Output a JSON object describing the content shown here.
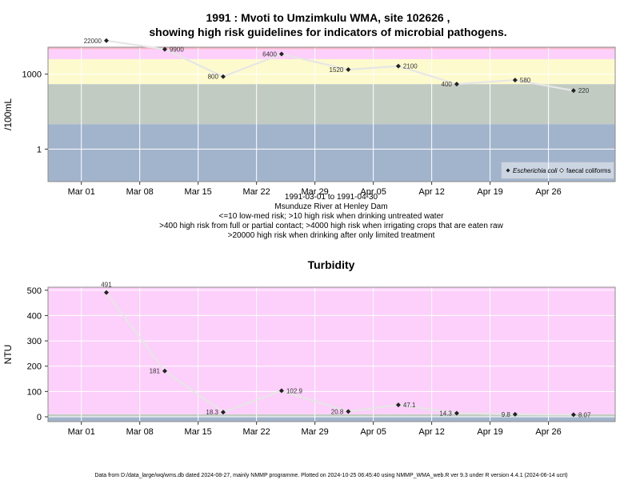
{
  "title_line1": "1991 : Mvoti to Umzimkulu WMA, site 102626 ,",
  "title_line2": "showing high risk guidelines for indicators of microbial pathogens.",
  "footer": "Data from D:/data_large/wq/wms.db dated 2024-08-27, mainly NMMP programme. Plotted on 2024-10-25 06:45:40 using NMMP_WMA_web.R ver 9.3 under R version 4.4.1 (2024-06-14 ucrt)",
  "colors": {
    "band_blue": "#a2b4cc",
    "band_green": "#c2cbc2",
    "band_yellow": "#fdfacd",
    "band_pink": "#fcd0fa",
    "band_red": "#f8b8c8",
    "line": "#e6e6e6",
    "marker": "#222222"
  },
  "chart_data": [
    {
      "type": "line",
      "ylabel": "/100mL",
      "yscale": "log",
      "ylim": [
        0.05,
        12000
      ],
      "yticks": [
        1,
        1000
      ],
      "ytick_labels": [
        "1",
        "1000"
      ],
      "xlim": [
        "1991-02-25",
        "1991-05-04"
      ],
      "xticks": [
        "1991-03-01",
        "1991-03-08",
        "1991-03-15",
        "1991-03-22",
        "1991-03-29",
        "1991-04-05",
        "1991-04-12",
        "1991-04-19",
        "1991-04-26"
      ],
      "xtick_labels": [
        "Mar 01",
        "Mar 08",
        "Mar 15",
        "Mar 22",
        "Mar 29",
        "Apr 05",
        "Apr 12",
        "Apr 19",
        "Apr 26"
      ],
      "guideline_bands": [
        {
          "from": 0.05,
          "to": 10,
          "color": "band_blue"
        },
        {
          "from": 10,
          "to": 400,
          "color": "band_green"
        },
        {
          "from": 400,
          "to": 4000,
          "color": "band_yellow"
        },
        {
          "from": 4000,
          "to": 10000,
          "color": "band_pink"
        },
        {
          "from": 10000,
          "to": 12000,
          "color": "band_red"
        }
      ],
      "x": [
        "1991-03-04",
        "1991-03-11",
        "1991-03-18",
        "1991-03-25",
        "1991-04-02",
        "1991-04-08",
        "1991-04-15",
        "1991-04-22",
        "1991-04-29"
      ],
      "series": [
        {
          "name": "Escherichia coli",
          "values": [
            22000,
            9900,
            800,
            6400,
            1520,
            2100,
            400,
            580,
            220
          ],
          "labels": [
            "22000",
            "9900",
            "800",
            "6400",
            "1520",
            "2100",
            "400",
            "580",
            "220"
          ],
          "label_side": [
            "left",
            "right",
            "left",
            "left",
            "left",
            "right",
            "left",
            "right",
            "right"
          ]
        }
      ],
      "legend": {
        "placement": "bottom-right",
        "entries": [
          "Escherichia coli",
          "faecal coliforms"
        ]
      },
      "xlabel_lines": [
        "1991-03-01 to 1991-04-30",
        "Msunduze River at Henley Dam",
        "<=10 low-med risk; >10 high risk when drinking untreated water",
        ">400 high risk from full or partial contact; >4000 high risk when irrigating crops that are eaten raw",
        ">20000 high risk when drinking after only limited treatment"
      ]
    },
    {
      "type": "line",
      "title": "Turbidity",
      "ylabel": "NTU",
      "ylim": [
        -19,
        512
      ],
      "yticks": [
        0,
        100,
        200,
        300,
        400,
        500
      ],
      "ytick_labels": [
        "0",
        "100",
        "200",
        "300",
        "400",
        "500"
      ],
      "xlim": [
        "1991-02-25",
        "1991-05-04"
      ],
      "xticks": [
        "1991-03-01",
        "1991-03-08",
        "1991-03-15",
        "1991-03-22",
        "1991-03-29",
        "1991-04-05",
        "1991-04-12",
        "1991-04-19",
        "1991-04-26"
      ],
      "xtick_labels": [
        "Mar 01",
        "Mar 08",
        "Mar 15",
        "Mar 22",
        "Mar 29",
        "Apr 05",
        "Apr 12",
        "Apr 19",
        "Apr 26"
      ],
      "guideline_bands": [
        {
          "from": -19,
          "to": 1,
          "color": "band_blue"
        },
        {
          "from": 1,
          "to": 10,
          "color": "band_green"
        },
        {
          "from": 10,
          "to": 512,
          "color": "band_pink"
        }
      ],
      "x": [
        "1991-03-04",
        "1991-03-11",
        "1991-03-18",
        "1991-03-25",
        "1991-04-02",
        "1991-04-08",
        "1991-04-15",
        "1991-04-22",
        "1991-04-29"
      ],
      "series": [
        {
          "values": [
            491,
            181,
            18.3,
            102.9,
            20.8,
            47.1,
            14.3,
            9.8,
            8.07
          ],
          "labels": [
            "491",
            "181",
            "18.3",
            "102.9",
            "20.8",
            "47.1",
            "14.3",
            "9.8",
            "8.07"
          ],
          "label_side": [
            "above",
            "left",
            "left",
            "right",
            "left",
            "right",
            "left",
            "left",
            "right"
          ]
        }
      ]
    }
  ]
}
